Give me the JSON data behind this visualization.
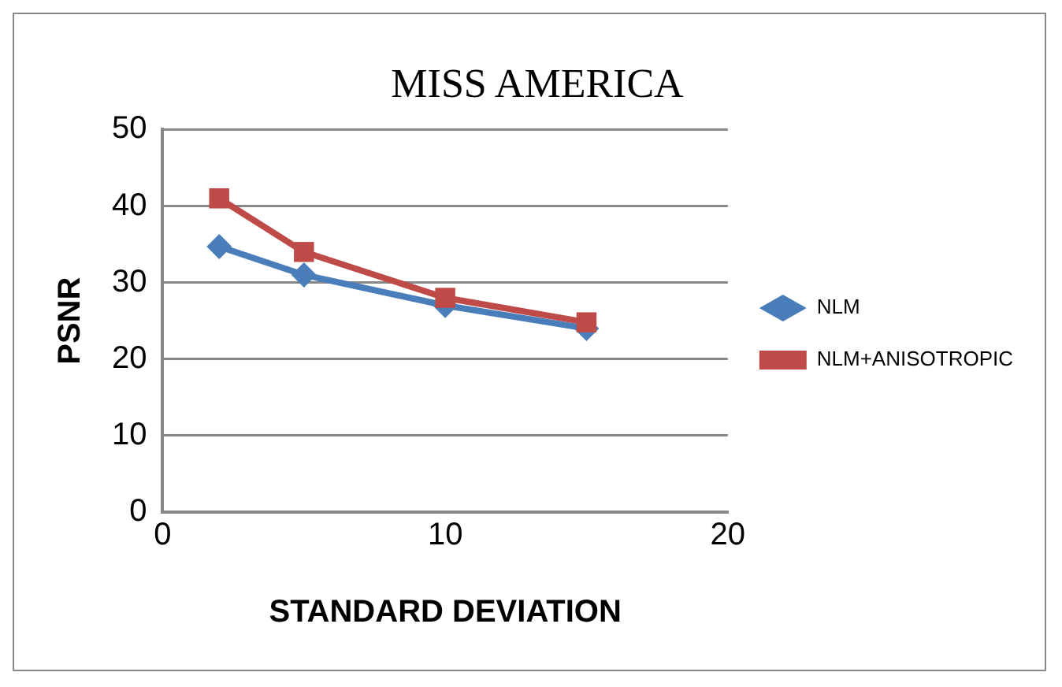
{
  "chart_data": {
    "type": "line",
    "title": "MISS AMERICA",
    "xlabel": "STANDARD DEVIATION",
    "ylabel": "PSNR",
    "x": [
      2,
      5,
      10,
      15
    ],
    "series": [
      {
        "name": "NLM",
        "color": "#4a7ebb",
        "values": [
          34.7,
          31,
          27,
          24
        ],
        "marker": "diamond"
      },
      {
        "name": "NLM+ANISOTROPIC",
        "color": "#be4b48",
        "values": [
          41,
          34,
          28,
          24.8
        ],
        "marker": "square"
      }
    ],
    "xlim": [
      0,
      20
    ],
    "xticks": [
      0,
      10,
      20
    ],
    "ylim": [
      0,
      50
    ],
    "yticks": [
      0,
      10,
      20,
      30,
      40,
      50
    ],
    "grid": "y",
    "legend": "right",
    "line_style": "solid"
  }
}
